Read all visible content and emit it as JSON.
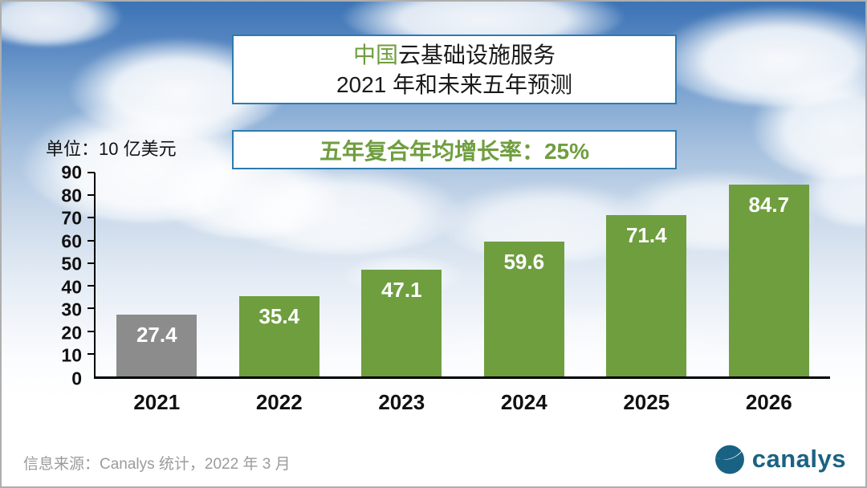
{
  "title": {
    "line1_highlight": "中国",
    "line1_rest": "云基础设施服务",
    "line2": "2021 年和未来五年预测"
  },
  "subtitle": "五年复合年均增长率：25%",
  "unit_label": "单位：10 亿美元",
  "source_note": "信息来源：Canalys 统计，2022 年 3 月",
  "logo": {
    "text": "canalys"
  },
  "colors": {
    "green": "#6f9e3f",
    "gray": "#8c8c8c",
    "box_border": "#2e7bae",
    "logo_teal": "#1a6283",
    "axis": "#000000",
    "source_text": "#9b9b9b"
  },
  "chart_data": {
    "type": "bar",
    "title": "中国云基础设施服务 2021 年和未来五年预测",
    "subtitle": "五年复合年均增长率：25%",
    "unit": "单位：10 亿美元",
    "categories": [
      "2021",
      "2022",
      "2023",
      "2024",
      "2025",
      "2026"
    ],
    "values": [
      27.4,
      35.4,
      47.1,
      59.6,
      71.4,
      84.7
    ],
    "value_labels": [
      "27.4",
      "35.4",
      "47.1",
      "59.6",
      "71.4",
      "84.7"
    ],
    "bar_colors": [
      "#8c8c8c",
      "#6f9e3f",
      "#6f9e3f",
      "#6f9e3f",
      "#6f9e3f",
      "#6f9e3f"
    ],
    "ylim": [
      0,
      90
    ],
    "yticks": [
      0,
      10,
      20,
      30,
      40,
      50,
      60,
      70,
      80,
      90
    ],
    "grid": false,
    "legend": false
  }
}
